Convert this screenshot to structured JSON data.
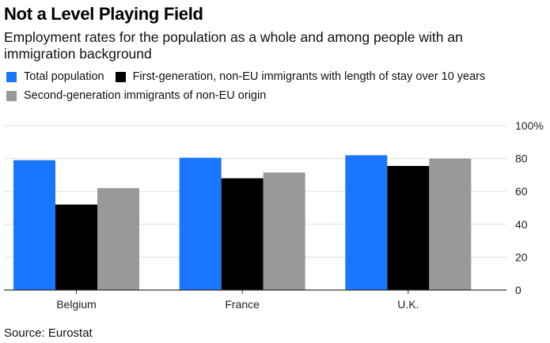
{
  "title": "Not a Level Playing Field",
  "subtitle": "Employment rates for the population as a whole and among people with an immigration background",
  "source": "Source: Eurostat",
  "colors": {
    "total": "#1a75ff",
    "first": "#000000",
    "second": "#999999",
    "grid": "#e0e0e0",
    "axis": "#333333"
  },
  "chart_data": {
    "type": "bar",
    "title": "Not a Level Playing Field",
    "xlabel": "",
    "ylabel": "",
    "categories": [
      "Belgium",
      "France",
      "U.K."
    ],
    "series": [
      {
        "name": "Total population",
        "values": [
          79,
          80.5,
          82
        ]
      },
      {
        "name": "First-generation, non-EU immigrants with length of stay over 10 years",
        "values": [
          52,
          68,
          75.5
        ]
      },
      {
        "name": "Second-generation immigrants of non-EU origin",
        "values": [
          62,
          71.5,
          80
        ]
      }
    ],
    "ylim": [
      0,
      100
    ],
    "yticks": [
      0,
      20,
      40,
      60,
      80,
      100
    ],
    "ytick_labels": [
      "0",
      "20",
      "40",
      "60",
      "80",
      "100%"
    ],
    "grid": true,
    "legend": "top-left"
  }
}
